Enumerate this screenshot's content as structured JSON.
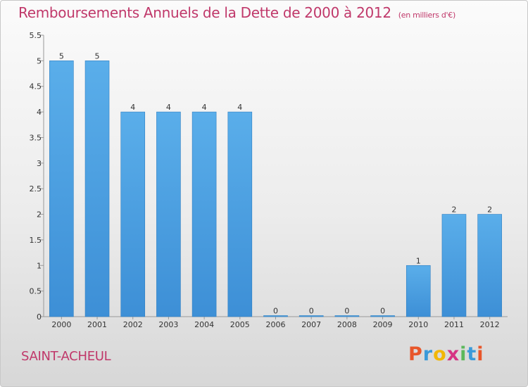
{
  "header": {
    "title": "Remboursements Annuels de la Dette de 2000 à 2012",
    "unit": "(en milliers d'€)"
  },
  "footer": {
    "town": "SAINT-ACHEUL",
    "logo_letters": [
      {
        "ch": "P",
        "color": "#e8562a"
      },
      {
        "ch": "r",
        "color": "#3a9ad9"
      },
      {
        "ch": "o",
        "color": "#f2b705"
      },
      {
        "ch": "x",
        "color": "#d63384"
      },
      {
        "ch": "i",
        "color": "#5cb85c"
      },
      {
        "ch": "t",
        "color": "#3a9ad9"
      },
      {
        "ch": "i",
        "color": "#e8562a"
      }
    ]
  },
  "chart_data": {
    "type": "bar",
    "categories": [
      "2000",
      "2001",
      "2002",
      "2003",
      "2004",
      "2005",
      "2006",
      "2007",
      "2008",
      "2009",
      "2010",
      "2011",
      "2012"
    ],
    "values": [
      5,
      5,
      4,
      4,
      4,
      4,
      0,
      0,
      0,
      0,
      1,
      2,
      2
    ],
    "data_labels": [
      "5",
      "5",
      "4",
      "4",
      "4",
      "4",
      "0",
      "0",
      "0",
      "0",
      "1",
      "2",
      "2"
    ],
    "ylim": [
      0,
      5.5
    ],
    "yticks": [
      0,
      0.5,
      1,
      1.5,
      2,
      2.5,
      3,
      3.5,
      4,
      4.5,
      5,
      5.5
    ],
    "ytick_labels": [
      "0",
      "0.5",
      "1",
      "1.5",
      "2",
      "2.5",
      "3",
      "3.5",
      "4",
      "4.5",
      "5",
      "5.5"
    ],
    "bar_color": "#3d8fd6",
    "bar_color_light": "#5aaeea",
    "grid": false
  }
}
